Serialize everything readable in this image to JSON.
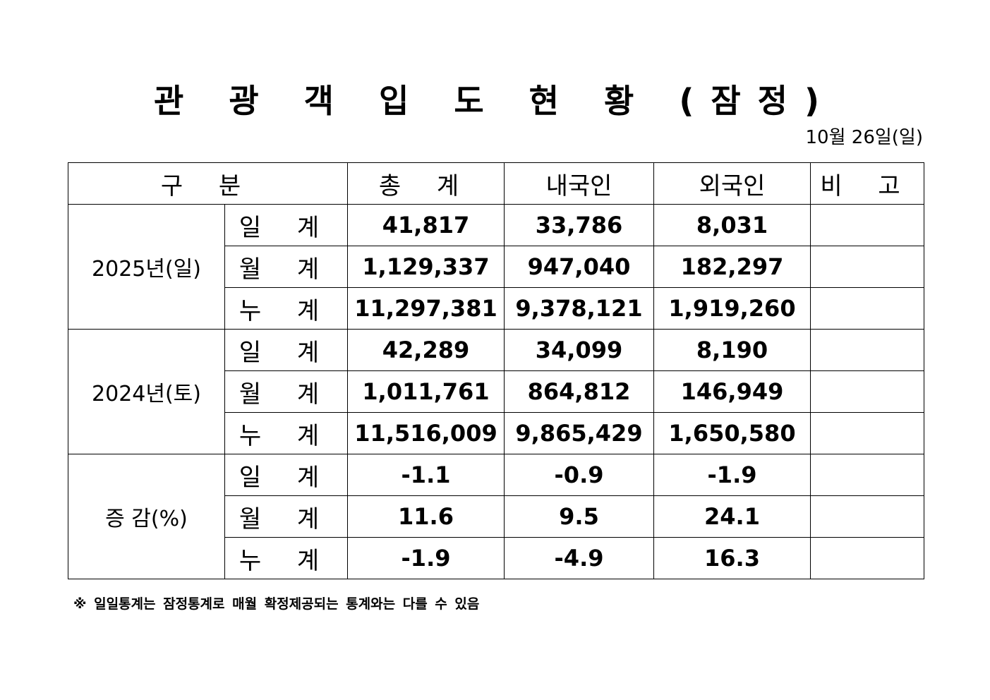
{
  "title": "관 광 객 입 도 현 황 (잠정)",
  "date": "10월  26일(일)",
  "table": {
    "headers": {
      "category": "구  분",
      "total": "총  계",
      "domestic": "내국인",
      "foreign": "외국인",
      "remarks": "비  고"
    },
    "groups": [
      {
        "label": "2025년(일)",
        "rows": [
          {
            "label": "일 계",
            "total": "41,817",
            "domestic": "33,786",
            "foreign": "8,031",
            "remarks": ""
          },
          {
            "label": "월 계",
            "total": "1,129,337",
            "domestic": "947,040",
            "foreign": "182,297",
            "remarks": ""
          },
          {
            "label": "누 계",
            "total": "11,297,381",
            "domestic": "9,378,121",
            "foreign": "1,919,260",
            "remarks": ""
          }
        ]
      },
      {
        "label": "2024년(토)",
        "rows": [
          {
            "label": "일 계",
            "total": "42,289",
            "domestic": "34,099",
            "foreign": "8,190",
            "remarks": ""
          },
          {
            "label": "월 계",
            "total": "1,011,761",
            "domestic": "864,812",
            "foreign": "146,949",
            "remarks": ""
          },
          {
            "label": "누 계",
            "total": "11,516,009",
            "domestic": "9,865,429",
            "foreign": "1,650,580",
            "remarks": ""
          }
        ]
      },
      {
        "label": "증 감(%)",
        "rows": [
          {
            "label": "일 계",
            "total": "-1.1",
            "domestic": "-0.9",
            "foreign": "-1.9",
            "remarks": ""
          },
          {
            "label": "월 계",
            "total": "11.6",
            "domestic": "9.5",
            "foreign": "24.1",
            "remarks": ""
          },
          {
            "label": "누 계",
            "total": "-1.9",
            "domestic": "-4.9",
            "foreign": "16.3",
            "remarks": ""
          }
        ]
      }
    ]
  },
  "footnote": "※ 일일통계는 잠정통계로 매월 확정제공되는 통계와는 다를 수 있음"
}
